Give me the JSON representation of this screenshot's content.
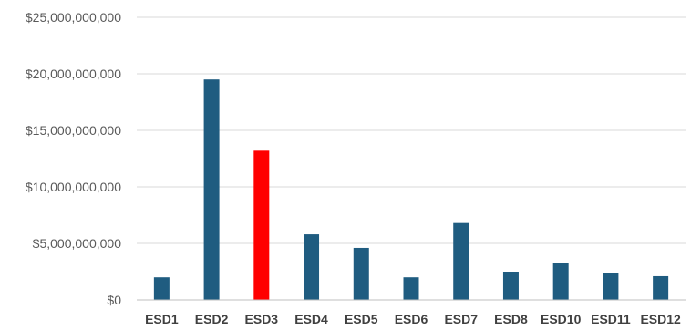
{
  "chart_data": {
    "type": "bar",
    "categories": [
      "ESD1",
      "ESD2",
      "ESD3",
      "ESD4",
      "ESD5",
      "ESD6",
      "ESD7",
      "ESD8",
      "ESD10",
      "ESD11",
      "ESD12"
    ],
    "values": [
      2000000000,
      19500000000,
      13200000000,
      5800000000,
      4600000000,
      2000000000,
      6800000000,
      2500000000,
      3300000000,
      2400000000,
      2100000000
    ],
    "ylim": [
      0,
      25000000000
    ],
    "y_ticks": [
      0,
      5000000000,
      10000000000,
      15000000000,
      20000000000,
      25000000000
    ],
    "y_tick_labels": [
      "$0",
      "$5,000,000,000",
      "$10,000,000,000",
      "$15,000,000,000",
      "$20,000,000,000",
      "$25,000,000,000"
    ],
    "grid": true,
    "legend": "none",
    "colors": {
      "default_bar": "#1f5c80",
      "highlight_bar": "#ff0000",
      "highlight_category": "ESD3"
    }
  }
}
